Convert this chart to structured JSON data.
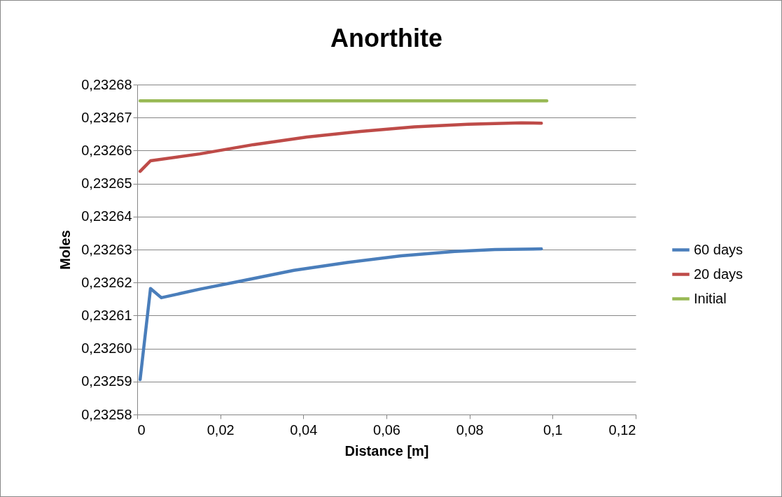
{
  "chart_data": {
    "type": "line",
    "title": "Anorthite",
    "xlabel": "Distance [m]",
    "ylabel": "Moles",
    "xlim": [
      0,
      0.12
    ],
    "xticks": [
      0,
      {
        "value": 0.02,
        "label": "0,02"
      },
      {
        "value": 0.04,
        "label": "0,04"
      },
      {
        "value": 0.06,
        "label": "0,06"
      },
      {
        "value": 0.08,
        "label": "0,08"
      },
      {
        "value": 0.1,
        "label": "0,1"
      },
      {
        "value": 0.12,
        "label": "0,12"
      }
    ],
    "ylim": [
      0.23258,
      0.23268
    ],
    "yticks": [
      {
        "value": 0.23258,
        "label": "0,23258"
      },
      {
        "value": 0.23259,
        "label": "0,23259"
      },
      {
        "value": 0.2326,
        "label": "0,23260"
      },
      {
        "value": 0.23261,
        "label": "0,23261"
      },
      {
        "value": 0.23262,
        "label": "0,23262"
      },
      {
        "value": 0.23263,
        "label": "0,23263"
      },
      {
        "value": 0.23264,
        "label": "0,23264"
      },
      {
        "value": 0.23265,
        "label": "0,23265"
      },
      {
        "value": 0.23266,
        "label": "0,23266"
      },
      {
        "value": 0.23267,
        "label": "0,23267"
      },
      {
        "value": 0.23268,
        "label": "0,23268"
      }
    ],
    "grid": "y",
    "legend": "right",
    "marker": "none",
    "line_style": "solid",
    "series": [
      {
        "name": "60 days",
        "color": "#4a7ebb",
        "x": [
          0.0007,
          0.0032,
          0.0058,
          0.0151,
          0.0248,
          0.0377,
          0.0506,
          0.0635,
          0.0764,
          0.0861,
          0.0973
        ],
        "values": [
          0.2325906,
          0.2326182,
          0.2326154,
          0.232618,
          0.2326204,
          0.2326237,
          0.2326261,
          0.2326281,
          0.2326294,
          0.23263,
          0.2326302
        ]
      },
      {
        "name": "20 days",
        "color": "#be4b48",
        "x": [
          0.0007,
          0.0032,
          0.0151,
          0.028,
          0.0409,
          0.0538,
          0.0667,
          0.0796,
          0.0925,
          0.0973
        ],
        "values": [
          0.2326537,
          0.2326569,
          0.232659,
          0.2326618,
          0.2326641,
          0.2326658,
          0.2326672,
          0.232668,
          0.2326684,
          0.2326683
        ]
      },
      {
        "name": "Initial",
        "color": "#98b954",
        "x": [
          0.0007,
          0.0986
        ],
        "values": [
          0.2326751,
          0.2326751
        ]
      }
    ]
  }
}
